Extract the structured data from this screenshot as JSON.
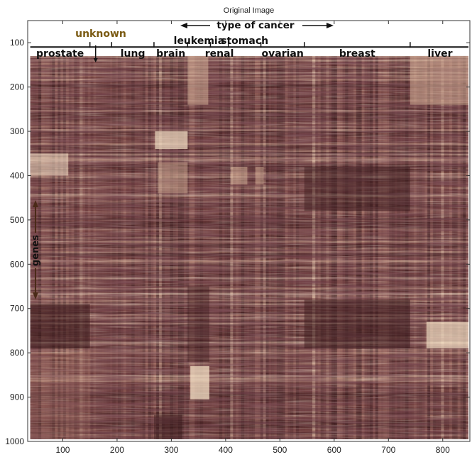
{
  "chart_data": {
    "type": "heatmap",
    "title": "Original Image",
    "xlabel": "",
    "ylabel": "",
    "xlim": [
      0,
      850
    ],
    "ylim": [
      1000,
      50
    ],
    "x_ticks": [
      100,
      200,
      300,
      400,
      500,
      600,
      700,
      800
    ],
    "y_ticks": [
      100,
      200,
      300,
      400,
      500,
      600,
      700,
      800,
      900,
      1000
    ],
    "data_extent": {
      "x": [
        40,
        850
      ],
      "y": [
        130,
        995
      ]
    },
    "colormap": [
      "#3a1a1c",
      "#6b3a3a",
      "#a06a60",
      "#d9b59c",
      "#f3dfc4"
    ],
    "column_annotation": "type of cancer",
    "row_annotation": "genes",
    "groups": [
      {
        "label": "prostate",
        "x_start": 40,
        "x_end": 150
      },
      {
        "label": "unknown",
        "x_start": 150,
        "x_end": 190
      },
      {
        "label": "lung",
        "x_start": 190,
        "x_end": 268
      },
      {
        "label": "brain",
        "x_start": 268,
        "x_end": 330
      },
      {
        "label": "leukemia",
        "x_start": 330,
        "x_end": 372
      },
      {
        "label": "renal",
        "x_start": 372,
        "x_end": 405
      },
      {
        "label": "stomach",
        "x_start": 405,
        "x_end": 465
      },
      {
        "label": "ovarian",
        "x_start": 465,
        "x_end": 545
      },
      {
        "label": "breast",
        "x_start": 545,
        "x_end": 740
      },
      {
        "label": "liver",
        "x_start": 740,
        "x_end": 850
      }
    ]
  }
}
